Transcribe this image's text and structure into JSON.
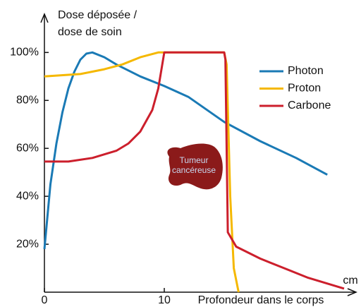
{
  "chart_data": {
    "type": "line",
    "y_label": [
      "Dose déposée /",
      "dose de soin"
    ],
    "x_label": "Profondeur dans le corps",
    "x_unit": "cm",
    "annotation": [
      "Tumeur",
      "cancéreuse"
    ],
    "xlim": [
      0,
      26
    ],
    "ylim": [
      0,
      116
    ],
    "xticks": [
      0,
      10
    ],
    "yticks": [
      {
        "value": 20,
        "label": "20%"
      },
      {
        "value": 40,
        "label": "40%"
      },
      {
        "value": 60,
        "label": "60%"
      },
      {
        "value": 80,
        "label": "80%"
      },
      {
        "value": 100,
        "label": "100%"
      }
    ],
    "legend": "top-right",
    "series": [
      {
        "name": "Photon",
        "color": "#1a7ab5",
        "x": [
          0,
          0.5,
          1,
          1.5,
          2,
          2.5,
          3,
          3.5,
          4,
          5,
          6,
          8,
          10,
          12,
          15,
          18,
          21,
          23.6
        ],
        "values": [
          18,
          45,
          62,
          75,
          85,
          92,
          97,
          99.5,
          100,
          98,
          95,
          90,
          86,
          81.5,
          71,
          63,
          56,
          49
        ]
      },
      {
        "name": "Proton",
        "color": "#f5b800",
        "x": [
          0,
          3,
          5,
          6.5,
          8,
          9.5,
          10,
          15,
          15.2,
          15.5,
          15.8,
          16.2
        ],
        "values": [
          90,
          91,
          93,
          95,
          98,
          100,
          100,
          100,
          95,
          40,
          10,
          0
        ]
      },
      {
        "name": "Carbone",
        "color": "#cc1f2c",
        "x": [
          0,
          2,
          4,
          6,
          7,
          8,
          9,
          9.5,
          10,
          15,
          15.1,
          15.3,
          16,
          18,
          20,
          22,
          24,
          25
        ],
        "values": [
          54.5,
          54.5,
          56,
          59,
          62,
          67,
          76,
          85,
          100,
          100,
          97,
          25,
          19,
          14,
          10,
          6,
          3,
          1.5
        ]
      }
    ]
  }
}
